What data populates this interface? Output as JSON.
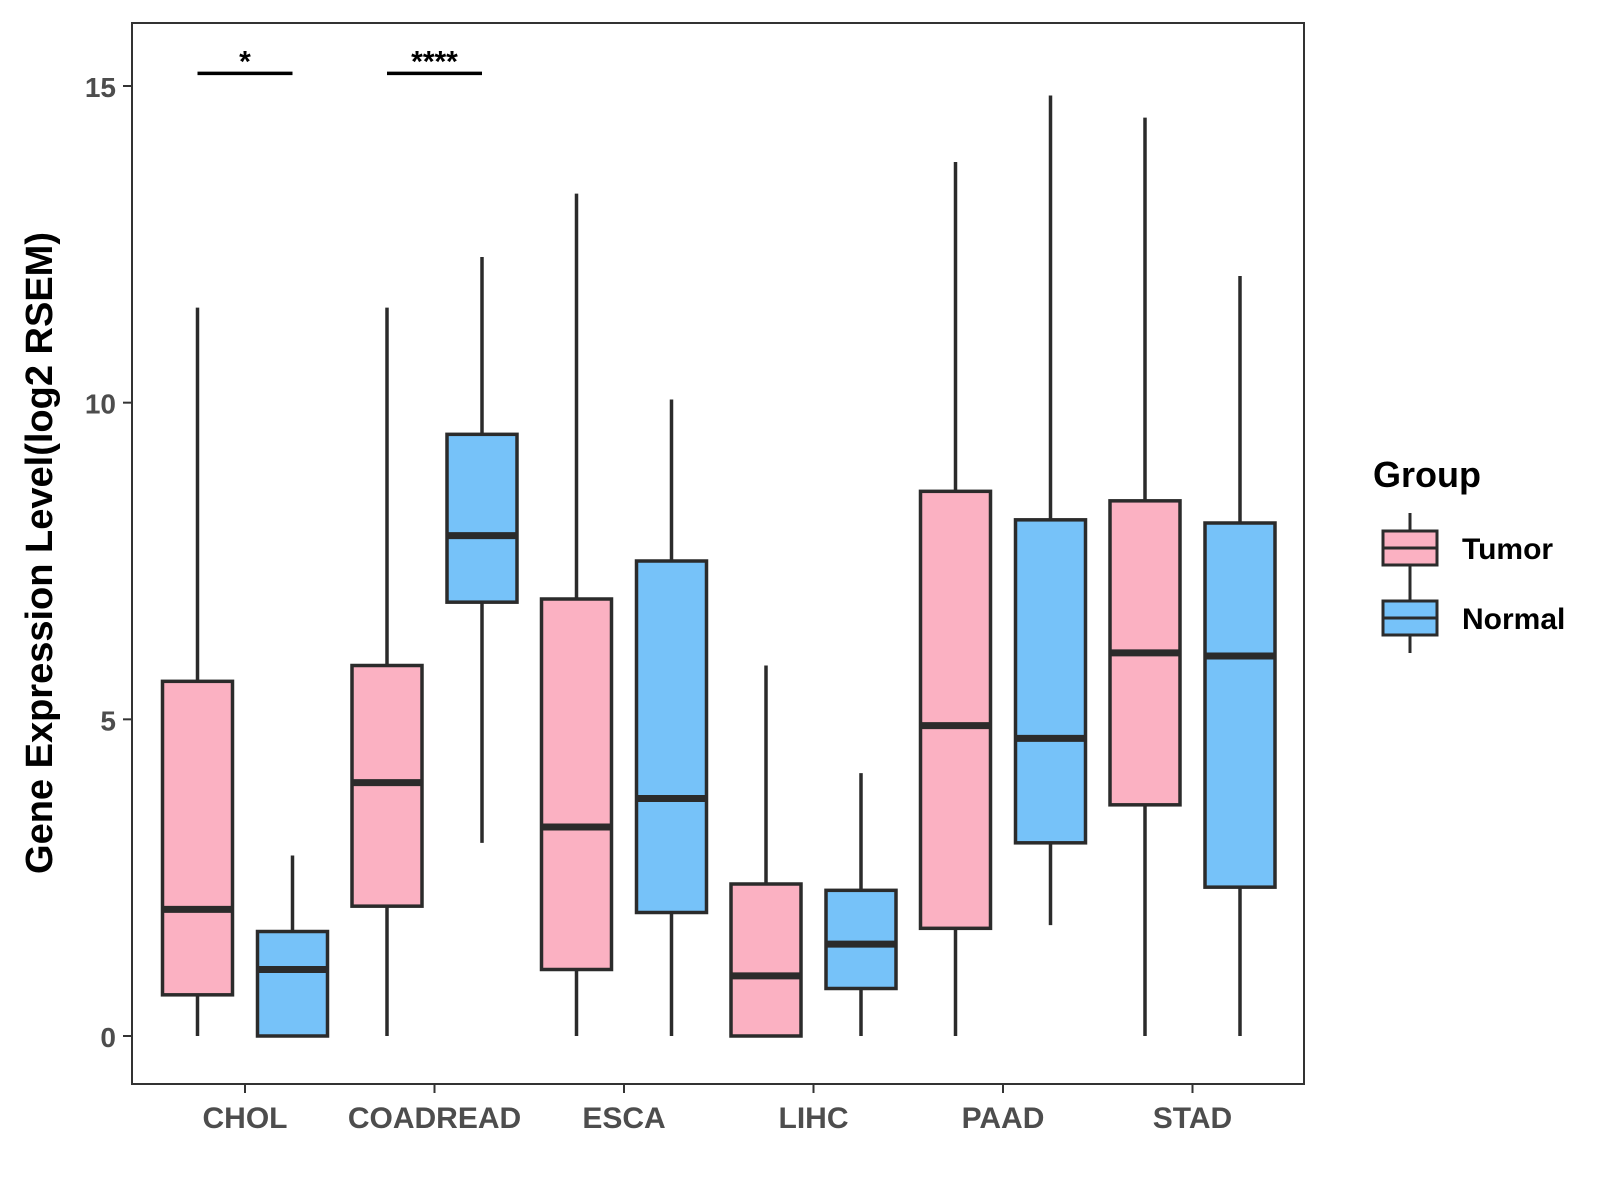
{
  "chart_data": {
    "type": "boxplot",
    "title": "",
    "xlabel": "",
    "ylabel": "Gene Expression Level(log2 RSEM)",
    "ylim": [
      -0.75,
      16
    ],
    "yticks": [
      0,
      5,
      10,
      15
    ],
    "categories": [
      "CHOL",
      "COADREAD",
      "ESCA",
      "LIHC",
      "PAAD",
      "STAD"
    ],
    "legend": {
      "title": "Group",
      "position": "right",
      "entries": [
        {
          "name": "Tumor",
          "color": "#FBB1C2"
        },
        {
          "name": "Normal",
          "color": "#76C2F9"
        }
      ]
    },
    "series": [
      {
        "name": "Tumor",
        "color": "#FBB1C2",
        "boxes": [
          {
            "min": 0.0,
            "q1": 0.65,
            "median": 2.0,
            "q3": 5.6,
            "max": 11.5
          },
          {
            "min": 0.0,
            "q1": 2.05,
            "median": 4.0,
            "q3": 5.85,
            "max": 11.5
          },
          {
            "min": 0.0,
            "q1": 1.05,
            "median": 3.3,
            "q3": 6.9,
            "max": 13.3
          },
          {
            "min": 0.0,
            "q1": 0.0,
            "median": 0.95,
            "q3": 2.4,
            "max": 5.85
          },
          {
            "min": 0.0,
            "q1": 1.7,
            "median": 4.9,
            "q3": 8.6,
            "max": 13.8
          },
          {
            "min": 0.0,
            "q1": 3.65,
            "median": 6.05,
            "q3": 8.45,
            "max": 14.5
          }
        ]
      },
      {
        "name": "Normal",
        "color": "#76C2F9",
        "boxes": [
          {
            "min": 0.0,
            "q1": 0.0,
            "median": 1.05,
            "q3": 1.65,
            "max": 2.85
          },
          {
            "min": 3.05,
            "q1": 6.85,
            "median": 7.9,
            "q3": 9.5,
            "max": 12.3
          },
          {
            "min": 0.0,
            "q1": 1.95,
            "median": 3.75,
            "q3": 7.5,
            "max": 10.05
          },
          {
            "min": 0.0,
            "q1": 0.75,
            "median": 1.45,
            "q3": 2.3,
            "max": 4.15
          },
          {
            "min": 1.75,
            "q1": 3.05,
            "median": 4.7,
            "q3": 8.15,
            "max": 14.85
          },
          {
            "min": 0.0,
            "q1": 2.35,
            "median": 6.0,
            "q3": 8.1,
            "max": 12.0
          }
        ]
      }
    ],
    "significance": [
      {
        "category": "CHOL",
        "label": "*",
        "y": 15.2
      },
      {
        "category": "COADREAD",
        "label": "****",
        "y": 15.2
      }
    ]
  }
}
